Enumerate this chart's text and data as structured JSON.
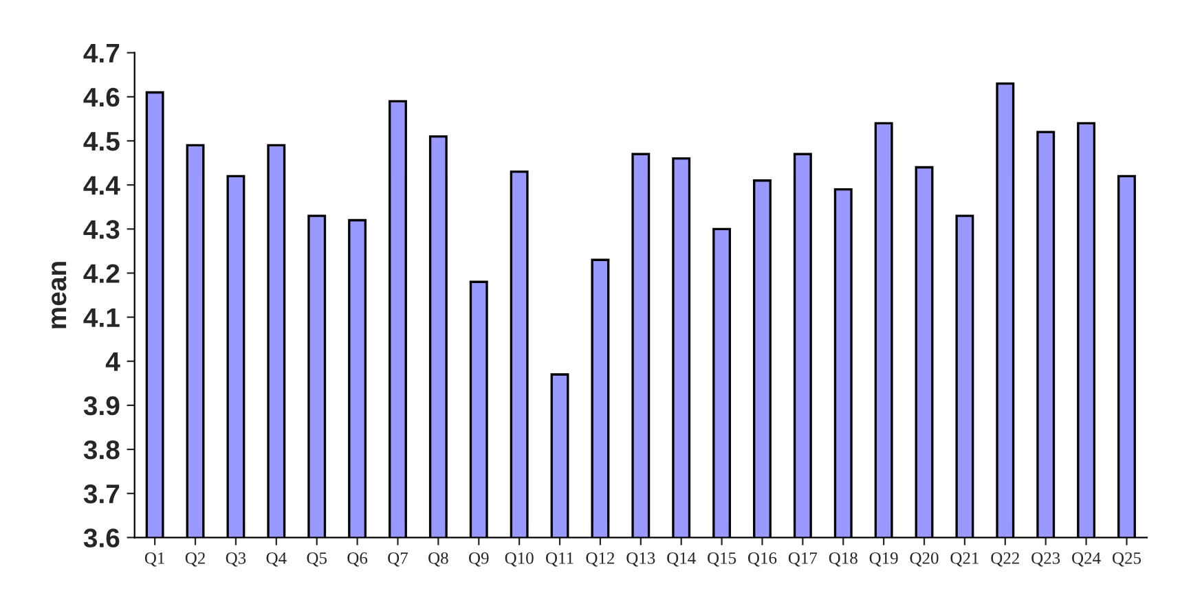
{
  "chart_data": {
    "type": "bar",
    "ylabel": "mean",
    "categories": [
      "Q1",
      "Q2",
      "Q3",
      "Q4",
      "Q5",
      "Q6",
      "Q7",
      "Q8",
      "Q9",
      "Q10",
      "Q11",
      "Q12",
      "Q13",
      "Q14",
      "Q15",
      "Q16",
      "Q17",
      "Q18",
      "Q19",
      "Q20",
      "Q21",
      "Q22",
      "Q23",
      "Q24",
      "Q25"
    ],
    "values": [
      4.61,
      4.49,
      4.42,
      4.49,
      4.33,
      4.32,
      4.59,
      4.51,
      4.18,
      4.43,
      3.97,
      4.23,
      4.47,
      4.46,
      4.3,
      4.41,
      4.47,
      4.39,
      4.54,
      4.44,
      4.33,
      4.63,
      4.52,
      4.54,
      4.42
    ],
    "color": "#9999ff",
    "ylim": [
      3.6,
      4.7
    ],
    "yticks": [
      3.6,
      3.7,
      3.8,
      3.9,
      4,
      4.1,
      4.2,
      4.3,
      4.4,
      4.5,
      4.6,
      4.7
    ],
    "grid": false
  }
}
